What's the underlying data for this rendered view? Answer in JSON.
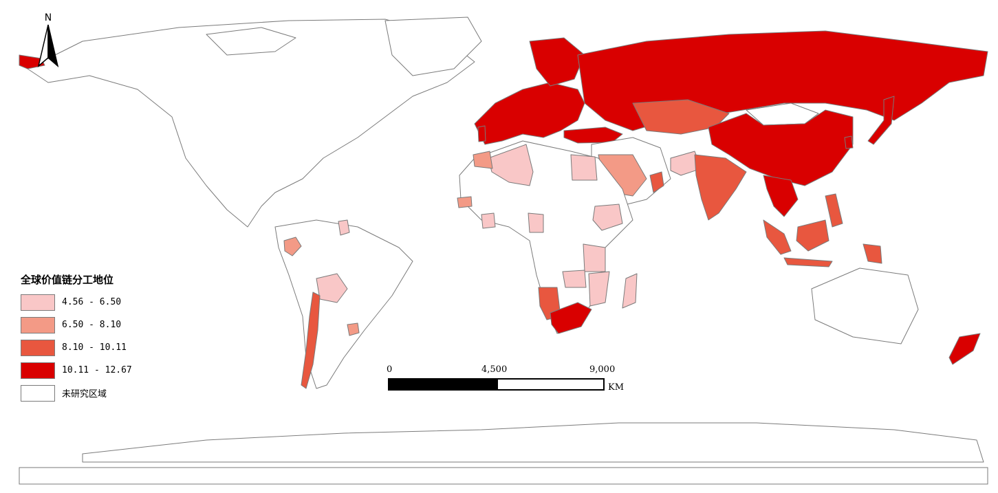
{
  "north_arrow": {
    "label": "N"
  },
  "legend": {
    "title": "全球价值链分工地位",
    "classes": [
      {
        "label": "4.56 - 6.50",
        "color": "#f9c7c7"
      },
      {
        "label": "6.50 - 8.10",
        "color": "#f39a86"
      },
      {
        "label": "8.10 - 10.11",
        "color": "#e8573f"
      },
      {
        "label": "10.11 - 12.67",
        "color": "#d90000"
      },
      {
        "label": "未研究区域",
        "color": "#ffffff"
      }
    ]
  },
  "scale_bar": {
    "tick_labels": [
      "0",
      "4,500",
      "9,000"
    ],
    "unit": "KM"
  },
  "colors": {
    "outline": "#7a7a7a",
    "background": "#ffffff"
  }
}
